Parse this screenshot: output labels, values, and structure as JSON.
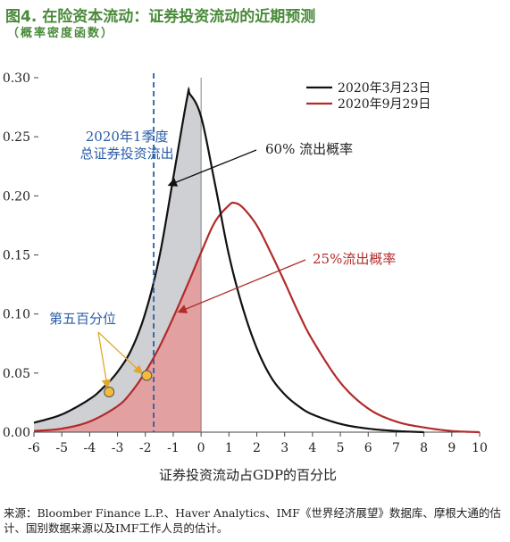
{
  "header": {
    "title": "图4. 在险资本流动：证券投资流动的近期预测",
    "subtitle": "（概率密度函数）"
  },
  "source_note": "来源：Bloomber Finance L.P.、Haver Analytics、IMF《世界经济展望》数据库、摩根大通的估计、国别数据来源以及IMF工作人员的估计。",
  "colors": {
    "black_line": "#111111",
    "red_line": "#b22b2b",
    "gray_fill": "#cfd0d3",
    "red_fill": "#e3a0a0",
    "blue_marker": "#2a5ca8",
    "point_fill": "#f2bb3c"
  },
  "chart_data": {
    "type": "line",
    "title": "图4. 在险资本流动：证券投资流动的近期预测",
    "subtitle": "（概率密度函数）",
    "xlabel": "证券投资流动占GDP的百分比",
    "ylabel": "",
    "xlim": [
      -6,
      10
    ],
    "ylim": [
      0,
      0.3
    ],
    "x_ticks": [
      -6,
      -5,
      -4,
      -3,
      -2,
      -1,
      0,
      1,
      2,
      3,
      4,
      5,
      6,
      7,
      8,
      9,
      10
    ],
    "y_ticks": [
      0.0,
      0.05,
      0.1,
      0.15,
      0.2,
      0.25,
      0.3
    ],
    "y_tick_labels": [
      "0.00",
      "0.05",
      "0.10",
      "0.15",
      "0.20",
      "0.25",
      "0.30"
    ],
    "legend": {
      "position": "top-right",
      "entries": [
        "2020年3月23日",
        "2020年9月29日"
      ]
    },
    "series": [
      {
        "name": "2020年3月23日",
        "color": "#111111",
        "x": [
          -6,
          -5,
          -4,
          -3.5,
          -3,
          -2.5,
          -2,
          -1.5,
          -1,
          -0.5,
          -0.4,
          0,
          0.5,
          1,
          1.5,
          2,
          2.5,
          3,
          3.5,
          4,
          5,
          6,
          7,
          8
        ],
        "y": [
          0.008,
          0.015,
          0.028,
          0.038,
          0.051,
          0.07,
          0.101,
          0.148,
          0.215,
          0.283,
          0.286,
          0.267,
          0.21,
          0.15,
          0.105,
          0.071,
          0.047,
          0.032,
          0.022,
          0.015,
          0.007,
          0.003,
          0.001,
          0.0
        ]
      },
      {
        "name": "2020年9月29日",
        "color": "#b22b2b",
        "x": [
          -6,
          -5,
          -4,
          -3,
          -2.5,
          -2,
          -1.5,
          -1,
          -0.5,
          0,
          0.5,
          1,
          1.2,
          1.5,
          2,
          2.5,
          3,
          3.5,
          4,
          5,
          6,
          7,
          8,
          9,
          10
        ],
        "y": [
          0.001,
          0.003,
          0.009,
          0.022,
          0.034,
          0.051,
          0.072,
          0.097,
          0.124,
          0.152,
          0.178,
          0.192,
          0.194,
          0.19,
          0.175,
          0.152,
          0.127,
          0.101,
          0.078,
          0.042,
          0.02,
          0.009,
          0.004,
          0.001,
          0.0
        ]
      }
    ],
    "shaded_regions": [
      {
        "series": "2020年3月23日",
        "x_range": [
          -6,
          0
        ],
        "label": "60% 流出概率"
      },
      {
        "series": "2020年9月29日",
        "x_range": [
          -6,
          0
        ],
        "label": "25%流出概率"
      }
    ],
    "vertical_line": {
      "x": -1.7,
      "label_line1": "2020年1季度",
      "label_line2": "总证券投资流出",
      "style": "dashed"
    },
    "zero_line": {
      "x": 0
    },
    "percentile_points": {
      "label": "第五百分位",
      "points": [
        {
          "x": -3.3,
          "y": 0.034
        },
        {
          "x": -1.95,
          "y": 0.048
        }
      ]
    },
    "annotations": [
      "60% 流出概率",
      "25%流出概率",
      "第五百分位"
    ]
  }
}
